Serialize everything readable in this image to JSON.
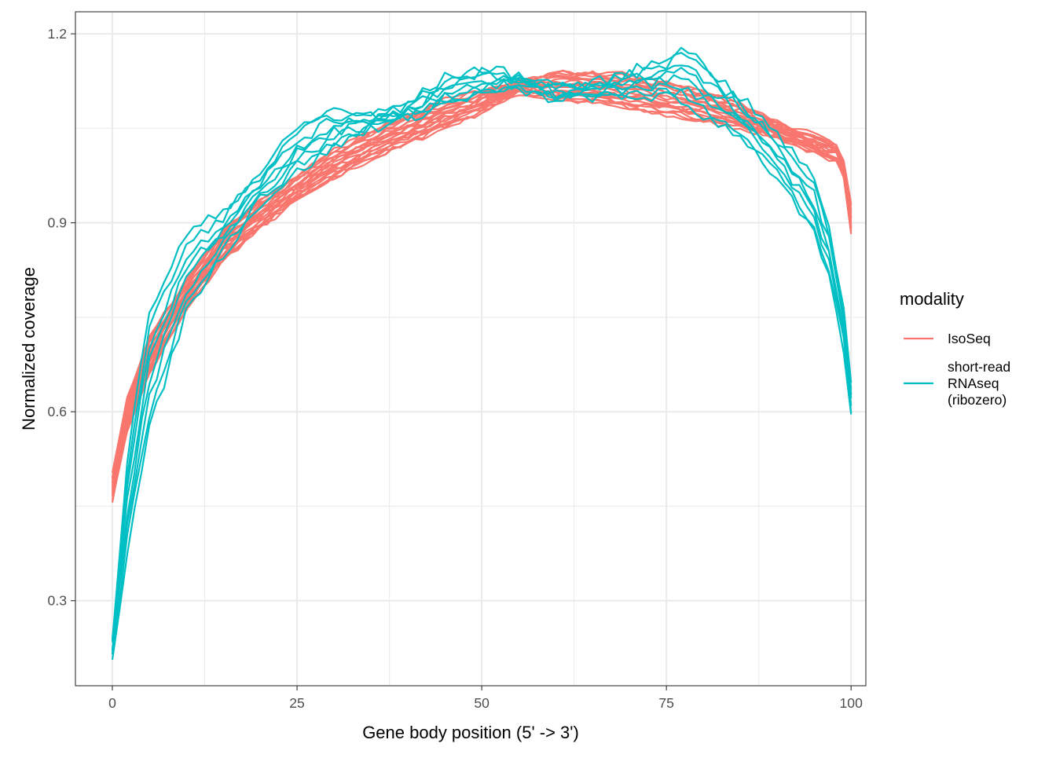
{
  "chart_data": {
    "type": "line",
    "title": "",
    "xlabel": "Gene body position (5' -> 3')",
    "ylabel": "Normalized coverage",
    "xlim": [
      -5,
      102
    ],
    "ylim": [
      0.165,
      1.235
    ],
    "x_ticks": [
      0,
      25,
      50,
      75,
      100
    ],
    "x_tick_labels": [
      "0",
      "25",
      "50",
      "75",
      "100"
    ],
    "y_ticks": [
      0.3,
      0.6,
      0.9,
      1.2
    ],
    "y_tick_labels": [
      "0.3",
      "0.6",
      "0.9",
      "1.2"
    ],
    "grid": true,
    "legend": {
      "title": "modality",
      "position": "right",
      "entries": [
        {
          "label": "IsoSeq",
          "lines": [
            "IsoSeq"
          ],
          "color": "#F8766D"
        },
        {
          "label": "short-read RNAseq (ribozero)",
          "lines": [
            "short-read",
            "RNAseq",
            "(ribozero)"
          ],
          "color": "#00BFC4"
        }
      ]
    },
    "series_groups": [
      {
        "name": "IsoSeq",
        "color": "#F8766D",
        "count": 20,
        "x": [
          0,
          2,
          5,
          10,
          15,
          20,
          25,
          30,
          35,
          40,
          45,
          50,
          55,
          60,
          65,
          70,
          75,
          80,
          85,
          90,
          95,
          98,
          99,
          100
        ],
        "high": [
          0.5,
          0.62,
          0.72,
          0.81,
          0.89,
          0.935,
          0.975,
          1.015,
          1.045,
          1.07,
          1.095,
          1.11,
          1.125,
          1.14,
          1.14,
          1.135,
          1.125,
          1.11,
          1.09,
          1.06,
          1.04,
          1.025,
          1.0,
          0.93
        ],
        "low": [
          0.46,
          0.57,
          0.66,
          0.76,
          0.84,
          0.89,
          0.935,
          0.97,
          1.0,
          1.025,
          1.05,
          1.075,
          1.105,
          1.095,
          1.09,
          1.08,
          1.07,
          1.06,
          1.05,
          1.035,
          1.01,
          0.995,
          0.97,
          0.88
        ]
      },
      {
        "name": "short-read RNAseq (ribozero)",
        "color": "#00BFC4",
        "count": 8,
        "x": [
          0,
          2,
          5,
          10,
          15,
          20,
          25,
          30,
          35,
          40,
          45,
          50,
          55,
          60,
          65,
          70,
          75,
          77,
          80,
          85,
          90,
          95,
          97,
          99,
          100
        ],
        "high": [
          0.24,
          0.52,
          0.76,
          0.88,
          0.92,
          0.98,
          1.05,
          1.08,
          1.07,
          1.09,
          1.13,
          1.145,
          1.135,
          1.12,
          1.12,
          1.14,
          1.16,
          1.185,
          1.15,
          1.1,
          1.04,
          0.97,
          0.9,
          0.76,
          0.65
        ],
        "low": [
          0.21,
          0.38,
          0.57,
          0.76,
          0.85,
          0.93,
          0.98,
          1.02,
          1.05,
          1.065,
          1.09,
          1.105,
          1.11,
          1.095,
          1.1,
          1.1,
          1.1,
          1.09,
          1.07,
          1.04,
          0.97,
          0.88,
          0.81,
          0.7,
          0.59
        ]
      }
    ]
  }
}
